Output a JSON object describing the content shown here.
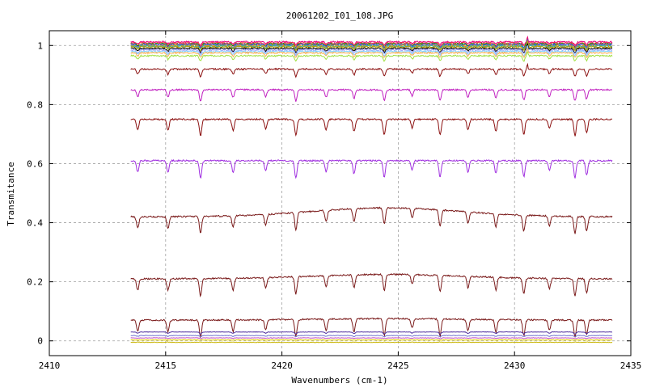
{
  "chart_data": {
    "type": "line",
    "title": "20061202_I01_108.JPG",
    "xlabel": "Wavenumbers (cm-1)",
    "ylabel": "Transmitance",
    "xlim": [
      2410,
      2435
    ],
    "ylim": [
      -0.05,
      1.05
    ],
    "x_ticks": [
      2410,
      2415,
      2420,
      2425,
      2430,
      2435
    ],
    "y_ticks": [
      0,
      0.2,
      0.4,
      0.6,
      0.8,
      1
    ],
    "x_tick_labels": [
      "2410",
      "2415",
      "2420",
      "2425",
      "2430",
      "2435"
    ],
    "y_tick_labels": [
      "0",
      "0.2",
      "0.4",
      "0.6",
      "0.8",
      "1"
    ],
    "x_range": [
      2413.5,
      2434.2
    ],
    "grid": "dashed",
    "absorption_lines": [
      2413.8,
      2415.1,
      2416.5,
      2417.9,
      2419.3,
      2420.6,
      2421.9,
      2423.1,
      2424.4,
      2425.6,
      2426.8,
      2428.0,
      2429.2,
      2430.4,
      2431.5,
      2432.6,
      2433.1
    ],
    "series": [
      {
        "level": 1.012,
        "color": "#e8007a"
      },
      {
        "level": 1.008,
        "color": "#ff4040"
      },
      {
        "level": 1.005,
        "color": "#00a000"
      },
      {
        "level": 1.003,
        "color": "#4040ff"
      },
      {
        "level": 1.0,
        "color": "#ff8c00"
      },
      {
        "level": 0.998,
        "color": "#20b0b0"
      },
      {
        "level": 0.995,
        "color": "#c0a000"
      },
      {
        "level": 0.99,
        "color": "#000000"
      },
      {
        "level": 0.985,
        "color": "#a0a0ff"
      },
      {
        "level": 0.98,
        "color": "#80d0ff"
      },
      {
        "level": 0.975,
        "color": "#ffb050"
      },
      {
        "level": 0.965,
        "color": "#a0e040"
      },
      {
        "level": 0.92,
        "color": "#8b1010"
      },
      {
        "level": 0.85,
        "color": "#c020c0"
      },
      {
        "level": 0.75,
        "color": "#8b1010"
      },
      {
        "level": 0.61,
        "color": "#a030e0"
      },
      {
        "level": 0.42,
        "color": "#7a1a1a"
      },
      {
        "level": 0.21,
        "color": "#7a1a1a"
      },
      {
        "level": 0.07,
        "color": "#7a1a1a"
      },
      {
        "level": 0.03,
        "color": "#5030a0"
      },
      {
        "level": 0.018,
        "color": "#7070d0"
      },
      {
        "level": 0.01,
        "color": "#c050c0"
      },
      {
        "level": 0.003,
        "color": "#e0d000"
      },
      {
        "level": -0.005,
        "color": "#c8b400"
      }
    ]
  }
}
